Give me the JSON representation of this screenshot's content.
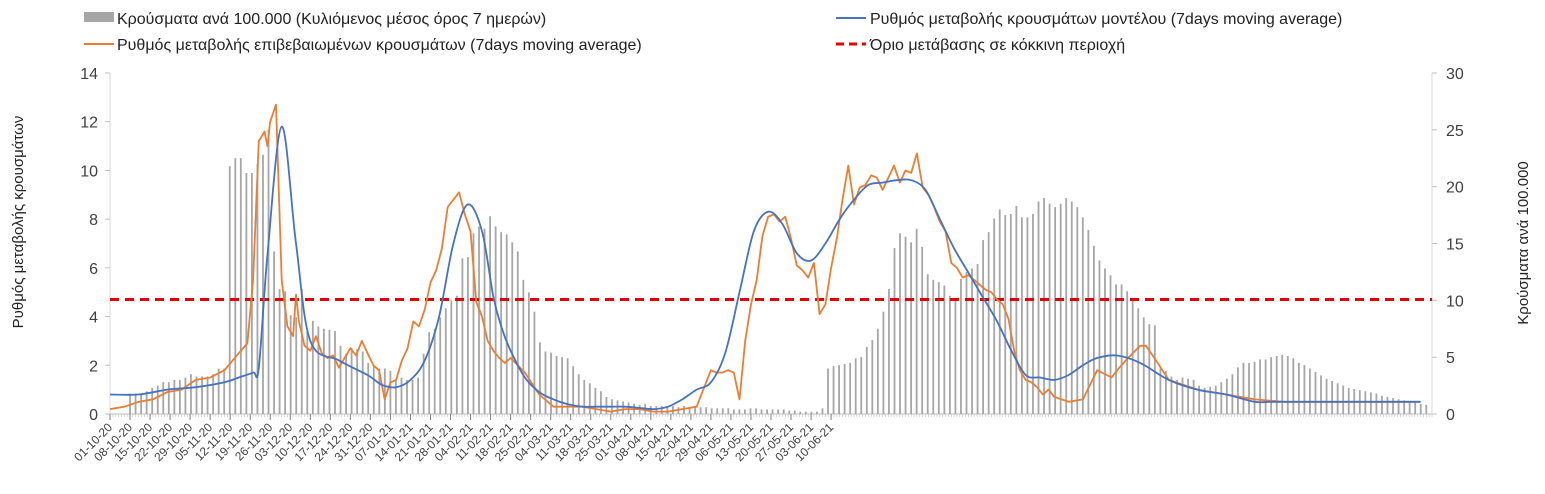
{
  "chart_data": {
    "type": "bar+line",
    "legend": [
      {
        "label": "Κρούσματα ανά 100.000 (Κυλιόμενος μέσος όρος 7 ημερών)",
        "kind": "bar",
        "color": "#a6a6a6"
      },
      {
        "label": "Ρυθμός μεταβολής κρουσμάτων μοντέλου (7days moving average)",
        "kind": "line",
        "color": "#4472c4"
      },
      {
        "label": "Ρυθμός μεταβολής επιβεβαιωμένων κρουσμάτων (7days moving average)",
        "kind": "line",
        "color": "#ed7d31"
      },
      {
        "label": "Όριο μετάβασης σε κόκκινη περιοχή",
        "kind": "dashed",
        "color": "#e60000"
      }
    ],
    "left_axis": {
      "label": "Ρυθμός μεταβολής κρουσμάτων",
      "ylim": [
        0,
        14
      ],
      "ticks": [
        "0",
        "2",
        "4",
        "6",
        "8",
        "10",
        "12",
        "14"
      ]
    },
    "right_axis": {
      "label": "Κρούσματα ανά 100.000",
      "ylim": [
        0,
        30
      ],
      "ticks": [
        "0",
        "5",
        "10",
        "15",
        "20",
        "25",
        "30"
      ]
    },
    "x_tick_labels": [
      "01-10-20",
      "08-10-20",
      "15-10-20",
      "22-10-20",
      "29-10-20",
      "05-11-20",
      "12-11-20",
      "19-11-20",
      "26-11-20",
      "03-12-20",
      "10-12-20",
      "17-12-20",
      "24-12-20",
      "31-12-20",
      "07-01-21",
      "14-01-21",
      "21-01-21",
      "28-01-21",
      "04-02-21",
      "11-02-21",
      "18-02-21",
      "25-02-21",
      "04-03-21",
      "11-03-21",
      "18-03-21",
      "25-03-21",
      "01-04-21",
      "08-04-21",
      "15-04-21",
      "22-04-21",
      "29-04-21",
      "06-05-21",
      "13-05-21",
      "20-05-21",
      "27-05-21",
      "03-06-21",
      "10-06-21"
    ],
    "bars_start_date": "08-10-20",
    "bars_per_100k": [
      1.8,
      1.8,
      1.8,
      2.0,
      2.3,
      2.5,
      2.8,
      2.8,
      3.0,
      3.0,
      3.2,
      3.5,
      3.3,
      3.3,
      3.3,
      3.5,
      4.0,
      4.0,
      21.8,
      22.5,
      22.5,
      21.2,
      21.2,
      22.0,
      22.8,
      25.0,
      14.3,
      11.0,
      10.8,
      8.7,
      8.5,
      11.0,
      7.3,
      8.2,
      7.7,
      7.5,
      7.4,
      7.3,
      6.0,
      5.3,
      5.8,
      5.7,
      5.5,
      4.5,
      4.2,
      4.0,
      4.0,
      3.8,
      3.0,
      3.2,
      3.0,
      3.0,
      3.2,
      5.3,
      7.2,
      7.5,
      8.5,
      9.3,
      10.0,
      10.4,
      13.7,
      13.8,
      15.9,
      16.5,
      16.3,
      17.4,
      16.5,
      16.0,
      15.8,
      15.1,
      14.3,
      11.8,
      10.7,
      9.0,
      6.3,
      5.5,
      5.4,
      5.1,
      5.0,
      4.9,
      4.2,
      3.5,
      3.0,
      2.7,
      2.3,
      2.0,
      1.5,
      1.3,
      1.2,
      1.1,
      1.0,
      0.9,
      0.8,
      0.9,
      0.7,
      0.7,
      0.7,
      0.7,
      0.7,
      0.6,
      0.7,
      0.6,
      0.6,
      0.6,
      0.6,
      0.5,
      0.5,
      0.5,
      0.5,
      0.4,
      0.4,
      0.4,
      0.5,
      0.5,
      0.4,
      0.4,
      0.4,
      0.4,
      0.4,
      0.3,
      0.3,
      0.2,
      0.2,
      0.2,
      0.2,
      0.5,
      4.0,
      4.2,
      4.3,
      4.4,
      4.5,
      4.9,
      5.0,
      5.9,
      6.5,
      7.5,
      9.0,
      11.0,
      14.6,
      15.9,
      15.6,
      15.1,
      16.3,
      14.7,
      12.3,
      11.8,
      11.6,
      11.3,
      10.4,
      10.2,
      11.9,
      12.5,
      12.8,
      13.2,
      15.3,
      16.0,
      17.2,
      18.0,
      17.5,
      17.6,
      18.3,
      17.3,
      17.3,
      17.6,
      18.7,
      19.0,
      18.5,
      18.2,
      18.5,
      19.0,
      18.7,
      18.2,
      17.3,
      16.2,
      14.8,
      13.5,
      12.8,
      12.2,
      11.4,
      11.4,
      10.8,
      10.0,
      9.3,
      8.5,
      7.9,
      7.8,
      4.0,
      3.8,
      3.3,
      3.0,
      3.2,
      3.1,
      3.0,
      2.5,
      2.3,
      2.4,
      2.5,
      2.8,
      3.1,
      3.5,
      4.1,
      4.5,
      4.5,
      4.6,
      4.8,
      4.8,
      5.0,
      5.1,
      5.2,
      5.1,
      4.9,
      4.5,
      4.3,
      4.0,
      3.7,
      3.4,
      3.1,
      2.9,
      2.7,
      2.5,
      2.3,
      2.2,
      2.1,
      2.0,
      1.9,
      1.8,
      1.6,
      1.5,
      1.4,
      1.3,
      1.2,
      1.1,
      1.0,
      0.9,
      0.8
    ],
    "series": [
      {
        "name": "Ρυθμός μεταβολής κρουσμάτων μοντέλου (7days moving average)",
        "x_day_index": [
          0,
          10,
          20,
          30,
          40,
          45,
          50,
          52,
          55,
          60,
          65,
          70,
          80,
          90,
          95,
          100,
          105,
          110,
          115,
          120,
          125,
          130,
          134,
          137,
          140,
          145,
          150,
          155,
          160,
          165,
          170,
          175,
          180,
          185,
          190,
          195,
          200,
          205,
          210,
          215,
          220,
          225,
          230,
          235,
          240,
          245,
          250,
          255,
          260,
          265,
          270,
          275,
          280,
          285,
          290,
          295,
          300,
          305,
          310,
          315,
          320,
          325,
          330,
          335,
          340,
          345,
          352,
          360,
          370,
          380,
          390,
          400,
          405,
          410,
          420,
          430,
          440,
          450,
          458
        ],
        "y": [
          0.8,
          0.8,
          1.0,
          1.1,
          1.3,
          1.5,
          1.7,
          1.9,
          6.5,
          11.8,
          7.0,
          3.0,
          2.2,
          1.6,
          1.2,
          1.1,
          1.4,
          2.2,
          4.0,
          7.0,
          8.6,
          7.5,
          4.8,
          3.5,
          2.6,
          1.5,
          0.9,
          0.6,
          0.4,
          0.3,
          0.3,
          0.3,
          0.3,
          0.25,
          0.2,
          0.3,
          0.6,
          1.0,
          1.3,
          2.5,
          5.0,
          7.5,
          8.3,
          7.8,
          6.6,
          6.3,
          7.0,
          8.0,
          8.8,
          9.4,
          9.5,
          9.6,
          9.6,
          9.2,
          8.0,
          6.8,
          5.8,
          4.8,
          3.8,
          2.6,
          1.6,
          1.5,
          1.4,
          1.6,
          2.0,
          2.3,
          2.4,
          2.1,
          1.4,
          1.0,
          0.8,
          0.5,
          0.5,
          0.5,
          0.5,
          0.5,
          0.5,
          0.5,
          0.5
        ]
      },
      {
        "name": "Ρυθμός μεταβολής επιβεβαιωμένων κρουσμάτων (7days moving average)",
        "x_day_index": [
          0,
          5,
          10,
          15,
          20,
          25,
          30,
          35,
          40,
          45,
          48,
          50,
          52,
          54,
          55,
          56,
          58,
          60,
          62,
          64,
          65,
          66,
          68,
          70,
          72,
          74,
          76,
          78,
          80,
          82,
          84,
          86,
          88,
          90,
          92,
          94,
          96,
          98,
          100,
          102,
          104,
          106,
          108,
          110,
          112,
          114,
          116,
          118,
          120,
          122,
          124,
          126,
          128,
          130,
          132,
          134,
          136,
          138,
          140,
          145,
          150,
          155,
          160,
          165,
          170,
          175,
          180,
          185,
          190,
          195,
          200,
          205,
          210,
          212,
          214,
          216,
          218,
          220,
          222,
          224,
          226,
          228,
          230,
          232,
          234,
          236,
          238,
          240,
          242,
          244,
          246,
          248,
          250,
          252,
          254,
          256,
          258,
          260,
          262,
          264,
          266,
          268,
          270,
          272,
          274,
          276,
          278,
          280,
          282,
          284,
          286,
          288,
          290,
          292,
          294,
          296,
          298,
          300,
          302,
          304,
          306,
          308,
          310,
          312,
          314,
          316,
          318,
          320,
          322,
          324,
          326,
          328,
          330,
          335,
          340,
          345,
          350,
          352,
          355,
          360,
          362,
          365,
          370,
          380,
          390,
          400,
          410,
          420,
          430,
          440,
          450,
          458
        ],
        "y": [
          0.2,
          0.3,
          0.5,
          0.6,
          0.9,
          1.0,
          1.4,
          1.5,
          1.8,
          2.5,
          2.9,
          5.5,
          11.2,
          11.6,
          11.0,
          12.0,
          12.7,
          5.5,
          3.6,
          3.2,
          4.9,
          3.8,
          2.8,
          2.6,
          3.2,
          2.5,
          2.3,
          2.4,
          1.9,
          2.3,
          2.7,
          2.4,
          3.0,
          2.5,
          2.0,
          1.8,
          0.6,
          1.3,
          1.4,
          2.2,
          2.7,
          3.8,
          3.6,
          4.3,
          5.4,
          5.9,
          6.8,
          8.5,
          8.8,
          9.1,
          8.2,
          7.5,
          4.6,
          4.0,
          3.0,
          2.6,
          2.3,
          2.1,
          2.3,
          1.7,
          0.8,
          0.3,
          0.3,
          0.3,
          0.2,
          0.1,
          0.2,
          0.2,
          0.1,
          0.1,
          0.2,
          0.3,
          1.8,
          1.7,
          1.7,
          1.8,
          1.7,
          0.6,
          3.0,
          4.5,
          5.5,
          7.3,
          8.1,
          8.2,
          7.9,
          8.1,
          7.2,
          6.1,
          5.9,
          5.6,
          6.2,
          4.1,
          4.5,
          6.0,
          7.2,
          8.8,
          10.2,
          8.6,
          9.3,
          9.4,
          9.8,
          9.7,
          9.2,
          9.7,
          10.2,
          9.5,
          10.0,
          9.9,
          10.7,
          9.3,
          9.0,
          8.5,
          7.9,
          7.5,
          6.2,
          6.0,
          5.6,
          5.7,
          5.5,
          5.3,
          5.1,
          5.0,
          4.7,
          4.5,
          3.9,
          2.6,
          1.8,
          1.4,
          1.3,
          1.1,
          0.8,
          1.0,
          0.7,
          0.5,
          0.6,
          1.8,
          1.5,
          1.8,
          2.2,
          2.8,
          2.8,
          2.3,
          1.4,
          1.0,
          0.8,
          0.6,
          0.5,
          0.5,
          0.5,
          0.5,
          0.5,
          0.5,
          0.5
        ]
      }
    ],
    "threshold": {
      "value": 4.7,
      "axis": "left"
    },
    "grid": false
  }
}
